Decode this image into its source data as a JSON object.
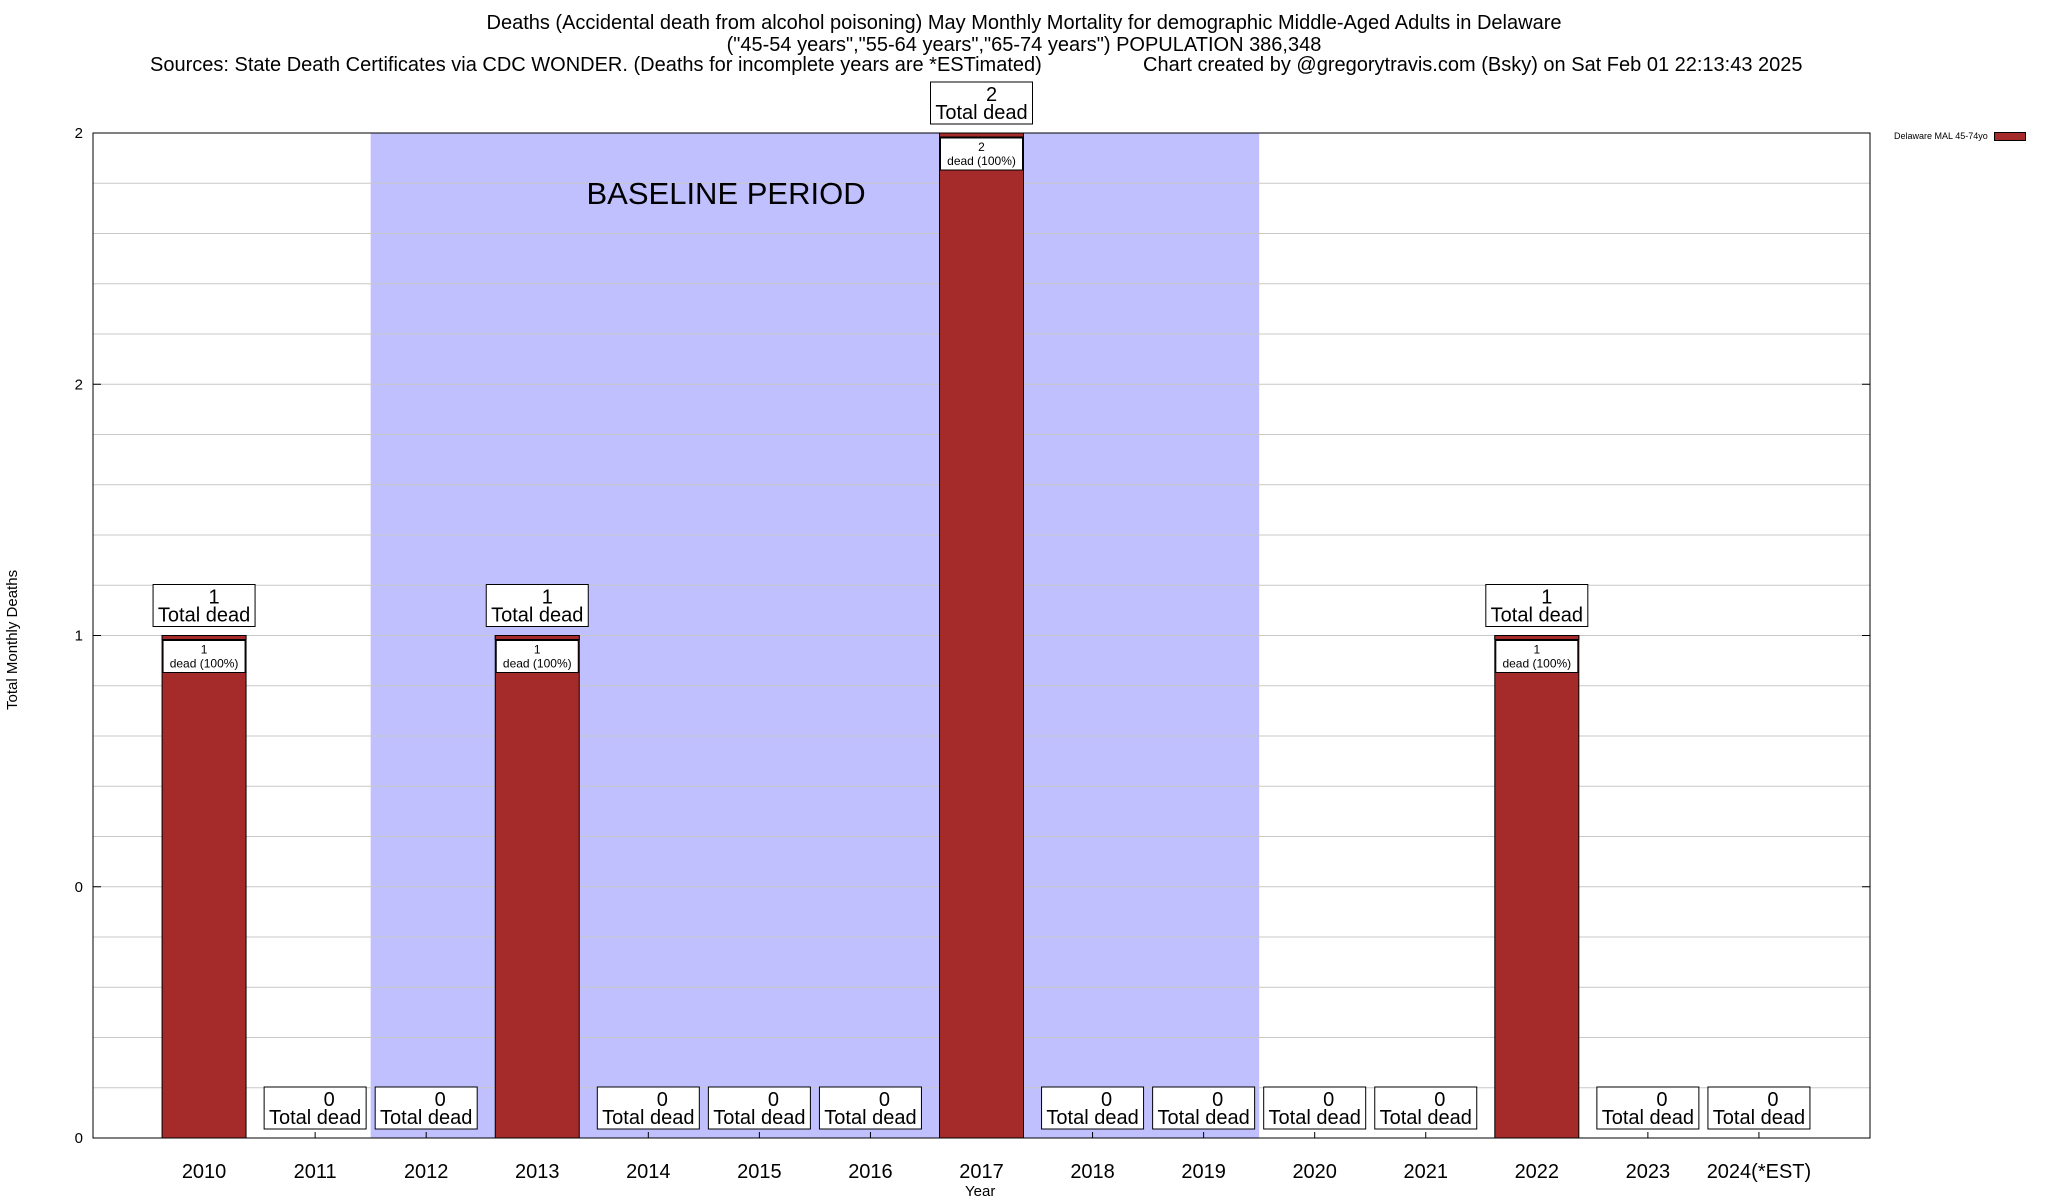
{
  "header": {
    "title": "Deaths (Accidental death from alcohol poisoning) May Monthly Mortality for demographic Middle-Aged Adults in Delaware",
    "subtitle": "(\"45-54 years\",\"55-64 years\",\"65-74 years\") POPULATION 386,348",
    "sources": "Sources: State Death Certificates via CDC WONDER. (Deaths for incomplete years are *ESTimated)",
    "credit": "Chart created by @gregorytravis.com (Bsky) on Sat Feb 01 22:13:43 2025"
  },
  "chart_data": {
    "type": "bar",
    "title": "Deaths (Accidental death from alcohol poisoning) May Monthly Mortality for demographic Middle-Aged Adults in Delaware",
    "xlabel": "Year",
    "ylabel": "Total Monthly Deaths",
    "categories": [
      "2010",
      "2011",
      "2012",
      "2013",
      "2014",
      "2015",
      "2016",
      "2017",
      "2018",
      "2019",
      "2020",
      "2021",
      "2022",
      "2023",
      "2024(*EST)"
    ],
    "series": [
      {
        "name": "Delaware MAL 45-74yo",
        "values": [
          1,
          0,
          0,
          1,
          0,
          0,
          0,
          2,
          0,
          0,
          0,
          0,
          1,
          0,
          0
        ],
        "color": "#a52a2a"
      }
    ],
    "ylim": [
      0,
      2
    ],
    "yticks": [
      {
        "value": 0,
        "label": "0"
      },
      {
        "value": 0.5,
        "label": "0"
      },
      {
        "value": 1,
        "label": "1"
      },
      {
        "value": 1.5,
        "label": "2"
      },
      {
        "value": 2,
        "label": "2"
      }
    ],
    "total_label_suffix": "Total dead",
    "segment_label_suffix": "dead (100%)",
    "baseline_period": {
      "label": "BASELINE PERIOD",
      "from": "2012",
      "to": "2019",
      "color": "#c0c0ff"
    },
    "grid": true,
    "legend_position": "top-right"
  }
}
